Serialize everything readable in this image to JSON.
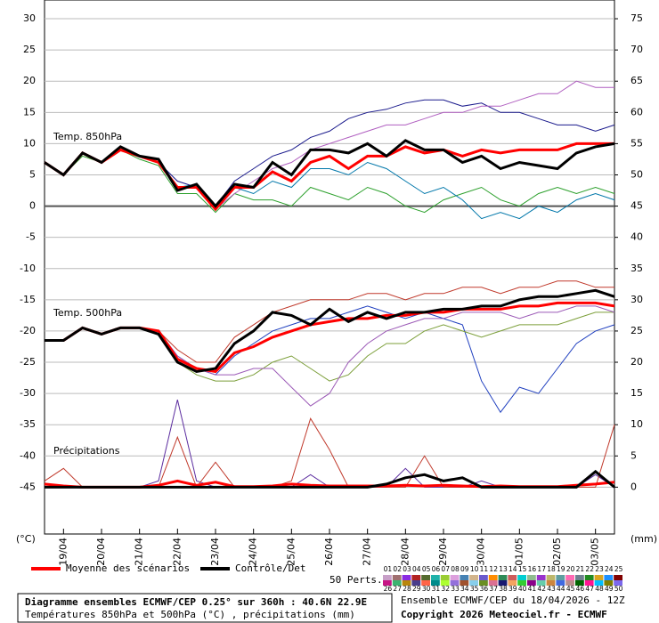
{
  "chart_data": {
    "type": "line",
    "x": [
      0,
      12,
      24,
      36,
      48,
      60,
      72,
      84,
      96,
      108,
      120,
      132,
      144,
      156,
      168,
      180,
      192,
      204,
      216,
      228,
      240,
      252,
      264,
      276,
      288,
      300,
      312,
      324,
      336,
      348,
      360
    ],
    "xlim": [
      0,
      360
    ],
    "xticks": [
      {
        "value": 12,
        "label": "19/04"
      },
      {
        "value": 36,
        "label": "20/04"
      },
      {
        "value": 60,
        "label": "21/04"
      },
      {
        "value": 84,
        "label": "22/04"
      },
      {
        "value": 108,
        "label": "23/04"
      },
      {
        "value": 132,
        "label": "24/04"
      },
      {
        "value": 156,
        "label": "25/04"
      },
      {
        "value": 180,
        "label": "26/04"
      },
      {
        "value": 204,
        "label": "27/04"
      },
      {
        "value": 228,
        "label": "28/04"
      },
      {
        "value": 252,
        "label": "29/04"
      },
      {
        "value": 276,
        "label": "30/04"
      },
      {
        "value": 300,
        "label": "01/05"
      },
      {
        "value": 324,
        "label": "02/05"
      },
      {
        "value": 348,
        "label": "03/05"
      }
    ],
    "ylim": [
      -52.5,
      33
    ],
    "yticks": [
      30,
      25,
      20,
      15,
      10,
      5,
      0,
      -5,
      -10,
      -15,
      -20,
      -25,
      -30,
      -35,
      -40,
      -45
    ],
    "y2lim": [
      -7.5,
      78
    ],
    "y2ticks": [
      75,
      70,
      65,
      60,
      55,
      50,
      45,
      40,
      35,
      30,
      25,
      20,
      15,
      10,
      5,
      0
    ],
    "ylabel": "(°C)",
    "y2label": "(mm)",
    "grid": true,
    "annotations": [
      "Temp. 850hPa",
      "Temp. 500hPa",
      "Précipitations"
    ],
    "series": [
      {
        "name": "Moyenne des scénarios",
        "color": "#ff0000",
        "values": [
          7,
          5,
          8.5,
          7,
          9,
          8,
          7,
          3,
          3,
          -0.5,
          3,
          3,
          5.5,
          4,
          7,
          8,
          6,
          8,
          8,
          9.5,
          8.5,
          9,
          8,
          9,
          8.5,
          9,
          9,
          9,
          10,
          10,
          10
        ]
      },
      {
        "name": "Contrôle/Det",
        "color": "#000000",
        "values": [
          7,
          5,
          8.5,
          7,
          9.5,
          8,
          7.5,
          2.5,
          3.5,
          0,
          3.5,
          3,
          7,
          5,
          9,
          9,
          8.5,
          10,
          8,
          10.5,
          9,
          9,
          7,
          8,
          6,
          7,
          6.5,
          6,
          8.5,
          9.5,
          10
        ]
      },
      {
        "color": "#1a1a8c",
        "values": [
          7,
          5,
          8.5,
          7,
          9,
          8,
          7,
          4,
          3,
          0,
          4,
          6,
          8,
          9,
          11,
          12,
          14,
          15,
          15.5,
          16.5,
          17,
          17,
          16,
          16.5,
          15,
          15,
          14,
          13,
          13,
          12,
          13
        ]
      },
      {
        "color": "#2ca02c",
        "values": [
          7,
          5,
          8,
          7,
          9,
          7.5,
          6.5,
          2,
          2,
          -1,
          2,
          1,
          1,
          0,
          3,
          2,
          1,
          3,
          2,
          0,
          -1,
          1,
          2,
          3,
          1,
          0,
          2,
          3,
          2,
          3,
          2
        ]
      },
      {
        "color": "#b05fc0",
        "values": [
          7,
          5,
          8.5,
          7,
          9,
          8,
          7,
          3,
          3,
          -0.5,
          2,
          4,
          6,
          7,
          9,
          10,
          11,
          12,
          13,
          13,
          14,
          15,
          15,
          16,
          16,
          17,
          18,
          18,
          20,
          19,
          19
        ]
      },
      {
        "color": "#0077aa",
        "values": [
          7,
          5,
          8.5,
          7,
          9,
          8,
          7.5,
          3,
          3.5,
          0,
          3,
          2,
          4,
          3,
          6,
          6,
          5,
          7,
          6,
          4,
          2,
          3,
          1,
          -2,
          -1,
          -2,
          0,
          -1,
          1,
          2,
          1
        ]
      },
      {
        "color": "#ff0000",
        "values": [
          -21.5,
          -21.5,
          -19.5,
          -20.5,
          -19.5,
          -19.5,
          -20,
          -24.5,
          -26,
          -26.5,
          -23.5,
          -22.5,
          -21,
          -20,
          -19,
          -18.5,
          -18,
          -18,
          -17.5,
          -17.5,
          -17,
          -17,
          -16.5,
          -16.5,
          -16.5,
          -16,
          -16,
          -15.5,
          -15.5,
          -15.5,
          -16
        ]
      },
      {
        "color": "#000000",
        "values": [
          -21.5,
          -21.5,
          -19.5,
          -20.5,
          -19.5,
          -19.5,
          -20.5,
          -25,
          -26.5,
          -26,
          -22,
          -20,
          -17,
          -17.5,
          -19,
          -16.5,
          -18.5,
          -17,
          -18,
          -17,
          -17,
          -16.5,
          -16.5,
          -16,
          -16,
          -15,
          -14.5,
          -14.5,
          -14,
          -13.5,
          -14.5
        ]
      },
      {
        "color": "#1f3fbf",
        "values": [
          -21.5,
          -21.5,
          -19.5,
          -20.5,
          -19.5,
          -19.5,
          -20,
          -24,
          -26,
          -27,
          -24,
          -22,
          -20,
          -19,
          -18,
          -18,
          -17,
          -16,
          -17,
          -18,
          -17,
          -18,
          -19,
          -28,
          -33,
          -29,
          -30,
          -26,
          -22,
          -20,
          -19
        ]
      },
      {
        "color": "#7c9f3a",
        "values": [
          -21.5,
          -21.5,
          -19.5,
          -20.5,
          -19.5,
          -19.5,
          -20.5,
          -25,
          -27,
          -28,
          -28,
          -27,
          -25,
          -24,
          -26,
          -28,
          -27,
          -24,
          -22,
          -22,
          -20,
          -19,
          -20,
          -21,
          -20,
          -19,
          -19,
          -19,
          -18,
          -17,
          -17
        ]
      },
      {
        "color": "#c0392b",
        "values": [
          -21.5,
          -21.5,
          -19.5,
          -20.5,
          -19.5,
          -19.5,
          -20,
          -23,
          -25,
          -25,
          -21,
          -19,
          -17,
          -16,
          -15,
          -15,
          -15,
          -14,
          -14,
          -15,
          -14,
          -14,
          -13,
          -13,
          -14,
          -13,
          -13,
          -12,
          -12,
          -13,
          -13
        ]
      },
      {
        "color": "#9b59b6",
        "values": [
          -21.5,
          -21.5,
          -19.5,
          -20.5,
          -19.5,
          -19.5,
          -20,
          -24,
          -26,
          -27,
          -27,
          -26,
          -26,
          -29,
          -32,
          -30,
          -25,
          -22,
          -20,
          -19,
          -18,
          -18,
          -17,
          -17,
          -17,
          -18,
          -17,
          -17,
          -16,
          -16,
          -17
        ]
      },
      {
        "color": "#5b2c9f",
        "axis": "y2",
        "values": [
          0,
          0,
          0,
          0,
          0,
          0,
          1,
          14,
          1,
          0,
          0,
          0,
          0,
          0,
          2,
          0,
          0,
          0,
          0,
          3,
          0,
          0,
          0,
          1,
          0,
          0,
          0,
          0,
          0,
          2,
          0
        ]
      },
      {
        "color": "#c0392b",
        "axis": "y2",
        "values": [
          1,
          3,
          0,
          0,
          0,
          0,
          0,
          8,
          0,
          4,
          0,
          0,
          0,
          1,
          11,
          6,
          0,
          0,
          0,
          0,
          5,
          0,
          0,
          0,
          0,
          0,
          0,
          0,
          0,
          0,
          10
        ]
      },
      {
        "color": "#ff0000",
        "axis": "y2",
        "values": [
          0.5,
          0.2,
          0,
          0,
          0,
          0,
          0.3,
          1,
          0.3,
          0.8,
          0.1,
          0.1,
          0.2,
          0.5,
          0.3,
          0.2,
          0.2,
          0.2,
          0.2,
          0.3,
          0.2,
          0.3,
          0.2,
          0.1,
          0.2,
          0.1,
          0.1,
          0.1,
          0.3,
          0.5,
          0.8
        ]
      },
      {
        "color": "#000000",
        "axis": "y2",
        "values": [
          0,
          0,
          0,
          0,
          0,
          0,
          0,
          0,
          0,
          0,
          0,
          0,
          0,
          0,
          0,
          0,
          0,
          0,
          0.5,
          1.5,
          2,
          1,
          1.5,
          0,
          0,
          0,
          0,
          0,
          0,
          2.5,
          0
        ]
      }
    ],
    "perts_label": "50 Perts.",
    "perts": [
      {
        "label": "01",
        "color": "#c8a0c8"
      },
      {
        "label": "02",
        "color": "#a07070"
      },
      {
        "label": "03",
        "color": "#8a2be2"
      },
      {
        "label": "04",
        "color": "#b22222"
      },
      {
        "label": "05",
        "color": "#556b2f"
      },
      {
        "label": "06",
        "color": "#20b2aa"
      },
      {
        "label": "07",
        "color": "#9acd32"
      },
      {
        "label": "08",
        "color": "#dda0dd"
      },
      {
        "label": "09",
        "color": "#4682b4"
      },
      {
        "label": "10",
        "color": "#d2b48c"
      },
      {
        "label": "11",
        "color": "#6a5acd"
      },
      {
        "label": "12",
        "color": "#ff8c00"
      },
      {
        "label": "13",
        "color": "#2e8b57"
      },
      {
        "label": "14",
        "color": "#cd5c5c"
      },
      {
        "label": "15",
        "color": "#00ced1"
      },
      {
        "label": "16",
        "color": "#8fbc8f"
      },
      {
        "label": "17",
        "color": "#9932cc"
      },
      {
        "label": "18",
        "color": "#bdb76b"
      },
      {
        "label": "19",
        "color": "#5f9ea0"
      },
      {
        "label": "20",
        "color": "#ff69b4"
      },
      {
        "label": "21",
        "color": "#708090"
      },
      {
        "label": "22",
        "color": "#228b22"
      },
      {
        "label": "23",
        "color": "#daa520"
      },
      {
        "label": "24",
        "color": "#1e90ff"
      },
      {
        "label": "25",
        "color": "#800000"
      },
      {
        "label": "26",
        "color": "#c71585"
      },
      {
        "label": "27",
        "color": "#3cb371"
      },
      {
        "label": "28",
        "color": "#b8860b"
      },
      {
        "label": "29",
        "color": "#483d8b"
      },
      {
        "label": "30",
        "color": "#ff6347"
      },
      {
        "label": "31",
        "color": "#008b8b"
      },
      {
        "label": "32",
        "color": "#adff2f"
      },
      {
        "label": "33",
        "color": "#9370db"
      },
      {
        "label": "34",
        "color": "#a0522d"
      },
      {
        "label": "35",
        "color": "#87ceeb"
      },
      {
        "label": "36",
        "color": "#6b8e23"
      },
      {
        "label": "37",
        "color": "#db7093"
      },
      {
        "label": "38",
        "color": "#191970"
      },
      {
        "label": "39",
        "color": "#f4a460"
      },
      {
        "label": "40",
        "color": "#32cd32"
      },
      {
        "label": "41",
        "color": "#8b008b"
      },
      {
        "label": "42",
        "color": "#66cdaa"
      },
      {
        "label": "43",
        "color": "#cd853f"
      },
      {
        "label": "44",
        "color": "#4169e1"
      },
      {
        "label": "45",
        "color": "#bc8f8f"
      },
      {
        "label": "46",
        "color": "#006400"
      },
      {
        "label": "47",
        "color": "#ff1493"
      },
      {
        "label": "48",
        "color": "#00bfff"
      },
      {
        "label": "49",
        "color": "#808000"
      },
      {
        "label": "50",
        "color": "#7b68ee"
      }
    ],
    "footer_title": "Diagramme ensembles ECMWF/CEP 0.25° sur 360h : 40.6N 22.9E",
    "footer_subtitle": "Températures 850hPa et 500hPa (°C) , précipitations (mm)",
    "run_info": "Ensemble ECMWF/CEP du 18/04/2026 - 12Z",
    "copyright": "Copyright 2026 Meteociel.fr - ECMWF"
  }
}
